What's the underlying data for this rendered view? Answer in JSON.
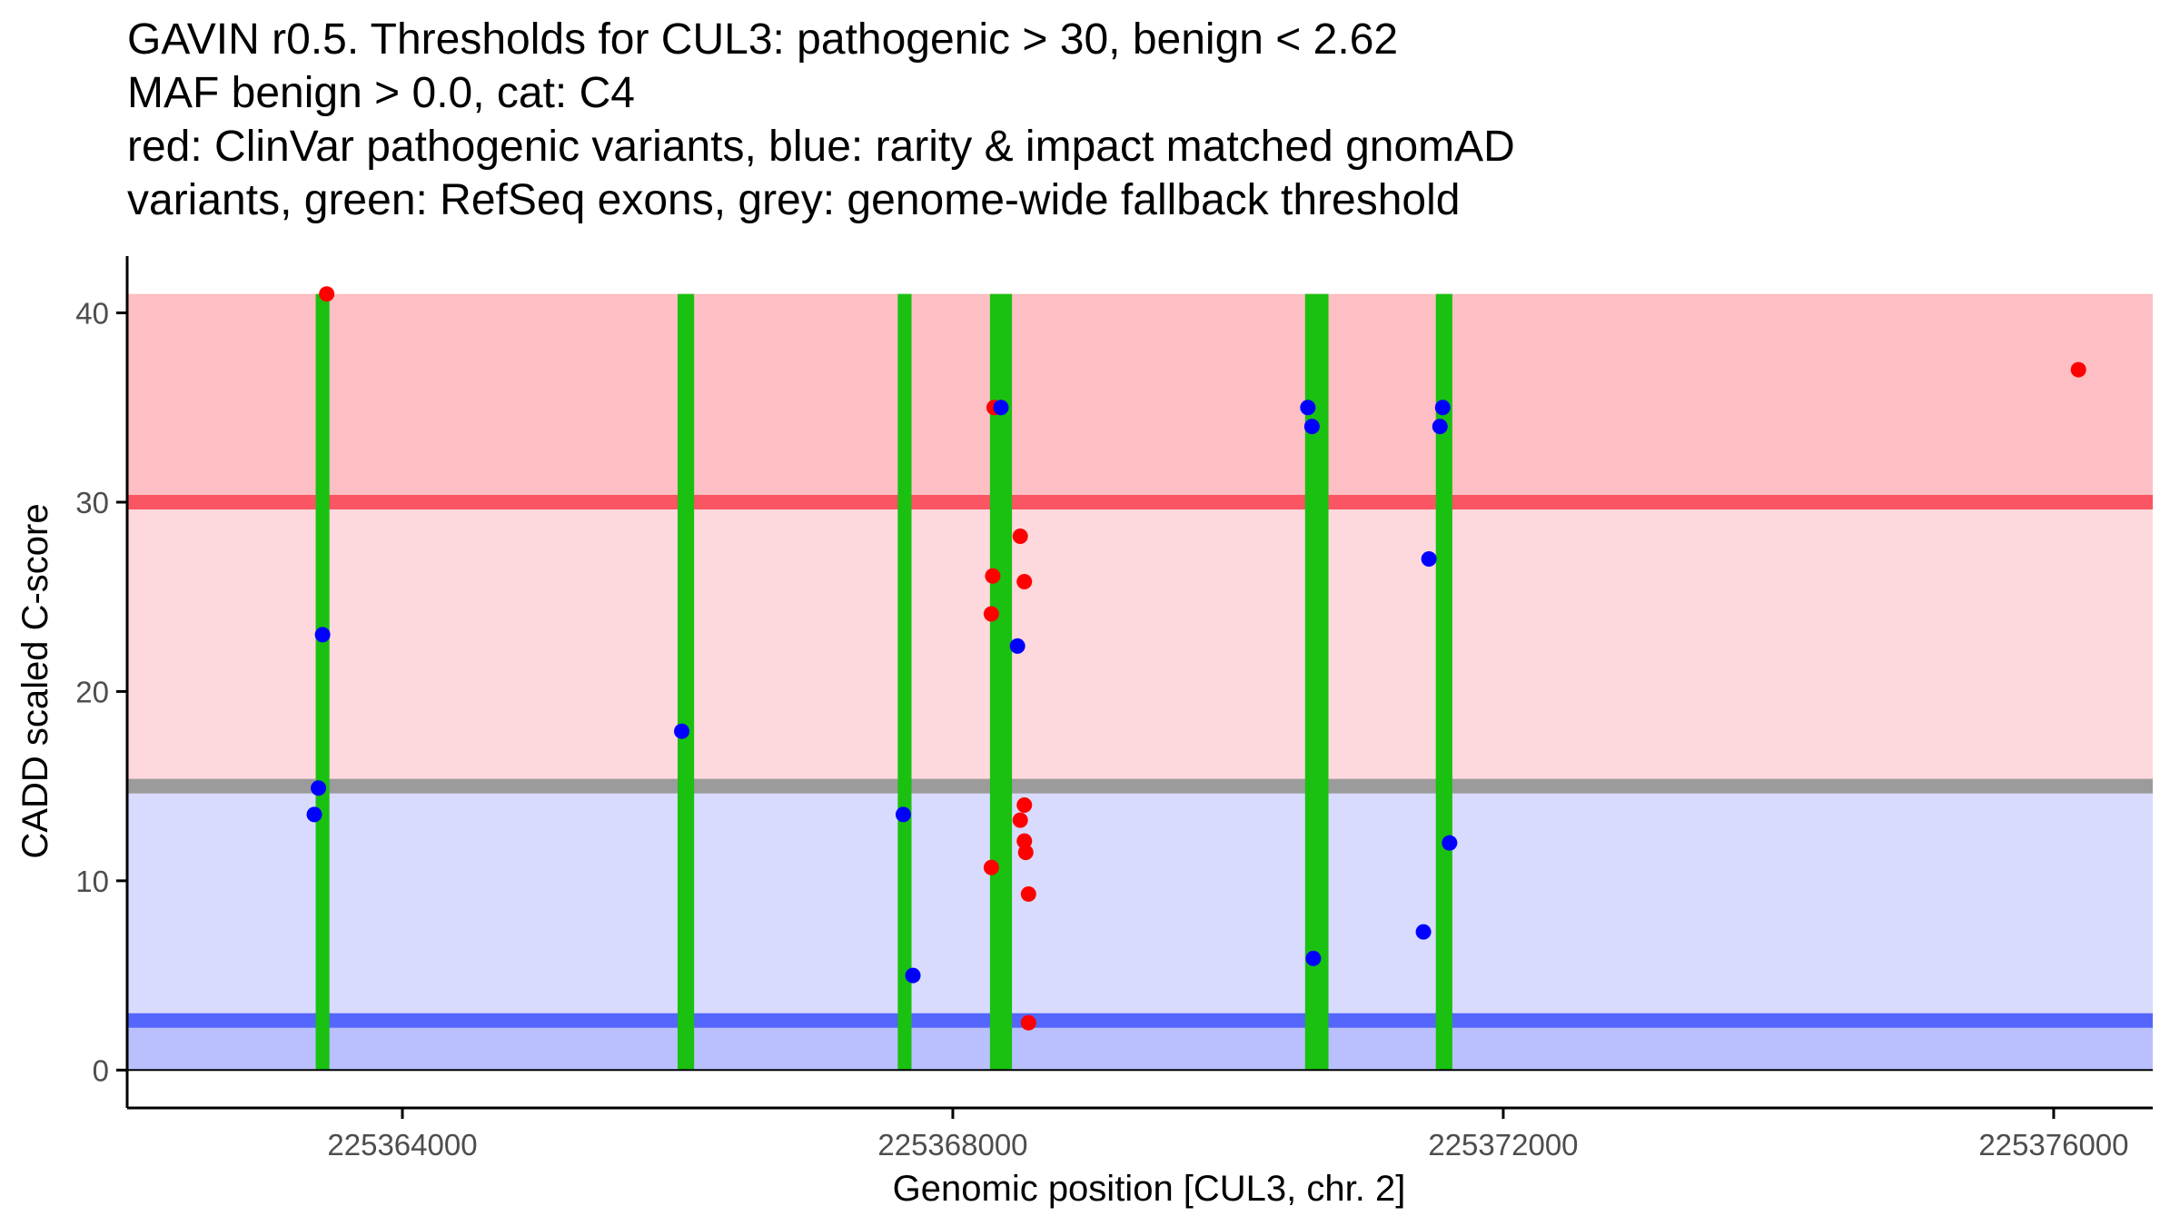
{
  "chart_data": {
    "type": "scatter",
    "title_lines": [
      "GAVIN r0.5. Thresholds for CUL3: pathogenic > 30, benign < 2.62",
      "MAF benign > 0.0, cat: C4",
      "red: ClinVar pathogenic variants, blue: rarity & impact matched gnomAD",
      "variants, green: RefSeq exons, grey: genome-wide fallback threshold"
    ],
    "xlabel": "Genomic position [CUL3, chr. 2]",
    "ylabel": "CADD scaled C-score",
    "xlim": [
      225362000,
      225376720
    ],
    "ylim": [
      -2,
      43
    ],
    "x_ticks": [
      225364000,
      225368000,
      225372000,
      225376000
    ],
    "x_tick_labels": [
      "225364000",
      "225368000",
      "225372000",
      "225376000"
    ],
    "y_ticks": [
      0,
      10,
      20,
      30,
      40
    ],
    "y_tick_labels": [
      "0",
      "10",
      "20",
      "30",
      "40"
    ],
    "grid": false,
    "colors": {
      "pathogenic_region": "#fdbfc4",
      "mid_region": "#fdd9dd",
      "benign_region": "#d8dbfd",
      "low_region": "#babffd",
      "pathogenic_line": "#fa5563",
      "fallback_line": "#9b9b9b",
      "benign_line": "#5466fb",
      "exon": "#1ac110",
      "pathogenic_point": "#ff0000",
      "gnomad_point": "#0000ff",
      "axis": "#000000",
      "tick_label": "#4d4d4d"
    },
    "bands": [
      {
        "name": "pathogenic",
        "from": 30,
        "to": 41
      },
      {
        "name": "between",
        "from": 15,
        "to": 30
      },
      {
        "name": "benign",
        "from": 2.62,
        "to": 15
      },
      {
        "name": "below-benign",
        "from": 0,
        "to": 2.62
      }
    ],
    "threshold_lines": [
      {
        "name": "pathogenic-threshold",
        "y": 30,
        "color_key": "pathogenic_line"
      },
      {
        "name": "fallback-threshold",
        "y": 15,
        "color_key": "fallback_line"
      },
      {
        "name": "benign-threshold",
        "y": 2.62,
        "color_key": "benign_line"
      }
    ],
    "exons": [
      {
        "start": 225363370,
        "end": 225363470
      },
      {
        "start": 225366000,
        "end": 225366120
      },
      {
        "start": 225367600,
        "end": 225367700
      },
      {
        "start": 225368270,
        "end": 225368430
      },
      {
        "start": 225370560,
        "end": 225370730
      },
      {
        "start": 225371510,
        "end": 225371630
      }
    ],
    "series": [
      {
        "name": "ClinVar pathogenic variants",
        "color_key": "pathogenic_point",
        "points": [
          {
            "x": 225363450,
            "y": 41
          },
          {
            "x": 225376180,
            "y": 37
          },
          {
            "x": 225368300,
            "y": 35
          },
          {
            "x": 225368490,
            "y": 28.2
          },
          {
            "x": 225368290,
            "y": 26.1
          },
          {
            "x": 225368520,
            "y": 25.8
          },
          {
            "x": 225368280,
            "y": 24.1
          },
          {
            "x": 225368520,
            "y": 14
          },
          {
            "x": 225368490,
            "y": 13.2
          },
          {
            "x": 225368520,
            "y": 12.1
          },
          {
            "x": 225368530,
            "y": 11.5
          },
          {
            "x": 225368280,
            "y": 10.7
          },
          {
            "x": 225368550,
            "y": 9.3
          },
          {
            "x": 225368550,
            "y": 2.5
          }
        ]
      },
      {
        "name": "rarity & impact matched gnomAD variants",
        "color_key": "gnomad_point",
        "points": [
          {
            "x": 225363420,
            "y": 23
          },
          {
            "x": 225363390,
            "y": 14.9
          },
          {
            "x": 225363360,
            "y": 13.5
          },
          {
            "x": 225366030,
            "y": 17.9
          },
          {
            "x": 225367640,
            "y": 13.5
          },
          {
            "x": 225367710,
            "y": 5
          },
          {
            "x": 225368350,
            "y": 35
          },
          {
            "x": 225368470,
            "y": 22.4
          },
          {
            "x": 225370580,
            "y": 35
          },
          {
            "x": 225370610,
            "y": 34
          },
          {
            "x": 225370620,
            "y": 5.9
          },
          {
            "x": 225371560,
            "y": 35
          },
          {
            "x": 225371540,
            "y": 34
          },
          {
            "x": 225371460,
            "y": 27
          },
          {
            "x": 225371610,
            "y": 12
          },
          {
            "x": 225371420,
            "y": 7.3
          }
        ]
      }
    ]
  }
}
